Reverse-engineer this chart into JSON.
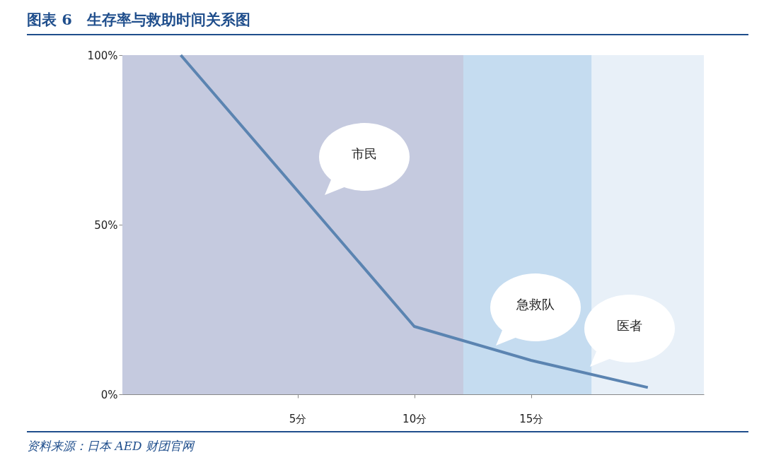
{
  "chart_data": {
    "type": "line",
    "title": "图表 6　生存率与救助时间关系图",
    "x": [
      0,
      10,
      15,
      20
    ],
    "series": [
      {
        "color": "#5b84b1",
        "values": [
          100,
          20,
          10,
          2
        ]
      }
    ],
    "xlim": [
      -2.5,
      22.4
    ],
    "xticks": [
      {
        "value": 5,
        "label": "5分"
      },
      {
        "value": 10,
        "label": "10分"
      },
      {
        "value": 15,
        "label": "15分"
      }
    ],
    "ylim": [
      0,
      100
    ],
    "yticks": [
      {
        "value": 0,
        "label": "0%"
      },
      {
        "value": 50,
        "label": "50%"
      },
      {
        "value": 100,
        "label": "100%"
      }
    ],
    "bands": [
      {
        "axis": "x",
        "from": -2.5,
        "to": 12.1,
        "label": null,
        "color": "#c5cadf"
      },
      {
        "axis": "x",
        "from": 12.1,
        "to": 17.6,
        "label": null,
        "color": "#c5dcf0"
      },
      {
        "axis": "x",
        "from": 17.6,
        "to": 22.4,
        "label": null,
        "color": "#e8f0f8"
      }
    ],
    "annotations": [
      "市民",
      "急救队",
      "医者",
      "资料来源：日本 AED 财团官网"
    ],
    "grid": false,
    "marker": "none",
    "line_style": "solid"
  }
}
